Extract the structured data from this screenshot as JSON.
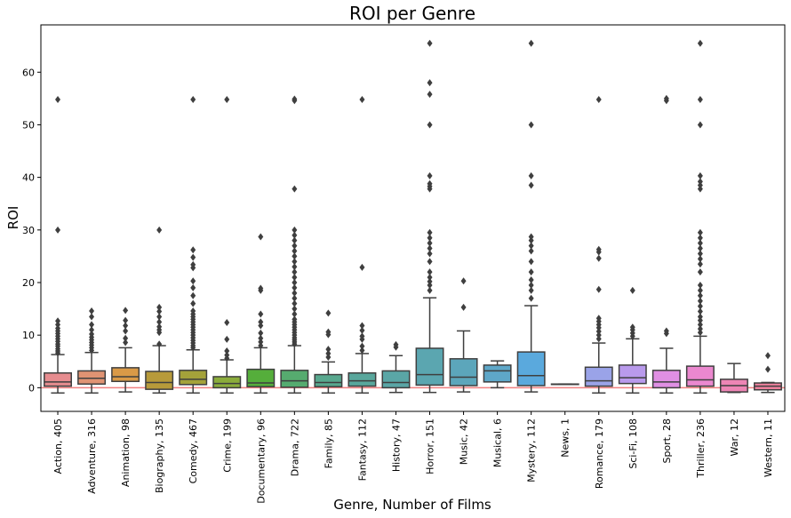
{
  "chart_data": {
    "type": "boxplot",
    "title": "ROI per Genre",
    "xlabel": "Genre, Number of Films",
    "ylabel": "ROI",
    "ylim": [
      -4.5,
      69
    ],
    "yticks": [
      0,
      10,
      20,
      30,
      40,
      50,
      60
    ],
    "grid": false,
    "reference_line": {
      "y": 0,
      "color": "#f08080"
    },
    "categories": [
      "Action, 405",
      "Adventure, 316",
      "Animation, 98",
      "Biography, 135",
      "Comedy, 467",
      "Crime, 199",
      "Documentary, 96",
      "Drama, 722",
      "Family, 85",
      "Fantasy, 112",
      "History, 47",
      "Horror, 151",
      "Music, 42",
      "Musical, 6",
      "Mystery, 112",
      "News, 1",
      "Romance, 179",
      "Sci-Fi, 108",
      "Sport, 28",
      "Thriller, 236",
      "War, 12",
      "Western, 11"
    ],
    "boxes": [
      {
        "min": -1.0,
        "q1": 0.3,
        "median": 1.1,
        "q3": 2.8,
        "max": 6.3,
        "color": "#e68c8f",
        "outliers": [
          6.6,
          7.0,
          7.4,
          7.9,
          8.3,
          8.8,
          9.3,
          9.8,
          10.3,
          10.8,
          11.3,
          12.0,
          12.7,
          30.0,
          54.8
        ]
      },
      {
        "min": -1.0,
        "q1": 0.7,
        "median": 1.8,
        "q3": 3.2,
        "max": 6.7,
        "color": "#e09373",
        "outliers": [
          7.1,
          7.6,
          8.1,
          8.6,
          9.1,
          9.6,
          10.2,
          11.0,
          12.0,
          13.5,
          14.6
        ]
      },
      {
        "min": -0.8,
        "q1": 1.2,
        "median": 2.1,
        "q3": 3.8,
        "max": 7.6,
        "color": "#d99a47",
        "outliers": [
          8.6,
          9.4,
          10.8,
          11.8,
          12.8,
          14.7
        ]
      },
      {
        "min": -1.0,
        "q1": -0.3,
        "median": 1.0,
        "q3": 3.1,
        "max": 8.0,
        "color": "#b79a3a",
        "outliers": [
          8.3,
          10.5,
          11.0,
          11.6,
          12.5,
          13.5,
          14.5,
          15.3,
          30.0
        ]
      },
      {
        "min": -1.0,
        "q1": 0.6,
        "median": 1.6,
        "q3": 3.3,
        "max": 7.2,
        "color": "#a4a23a",
        "outliers": [
          7.6,
          8.0,
          8.5,
          9.0,
          9.5,
          10.0,
          10.5,
          11.0,
          11.5,
          12.0,
          12.5,
          13.0,
          13.5,
          14.0,
          14.6,
          16.0,
          17.5,
          19.0,
          20.3,
          22.8,
          23.4,
          24.8,
          26.2,
          54.8
        ]
      },
      {
        "min": -1.0,
        "q1": 0.0,
        "median": 0.8,
        "q3": 2.1,
        "max": 5.3,
        "color": "#8bac3b",
        "outliers": [
          5.6,
          6.2,
          7.0,
          9.2,
          12.4,
          54.8
        ]
      },
      {
        "min": -1.0,
        "q1": 0.2,
        "median": 0.9,
        "q3": 3.5,
        "max": 7.6,
        "color": "#55ae3b",
        "outliers": [
          8.0,
          8.7,
          9.4,
          10.4,
          11.8,
          12.5,
          14.0,
          18.5,
          18.9,
          28.7
        ]
      },
      {
        "min": -1.0,
        "q1": 0.1,
        "median": 1.3,
        "q3": 3.3,
        "max": 8.0,
        "color": "#56ab6f",
        "outliers": [
          8.3,
          8.7,
          9.1,
          9.5,
          10.0,
          10.5,
          11.0,
          11.5,
          12.0,
          12.5,
          13.0,
          14.0,
          15.0,
          16.0,
          17.0,
          18.0,
          19.0,
          20.0,
          21.0,
          22.0,
          23.0,
          24.0,
          25.0,
          26.0,
          27.0,
          28.0,
          29.0,
          30.0,
          37.8,
          54.6,
          54.9
        ]
      },
      {
        "min": -1.0,
        "q1": 0.2,
        "median": 1.0,
        "q3": 2.5,
        "max": 4.9,
        "color": "#58a88e",
        "outliers": [
          5.8,
          6.5,
          7.3,
          10.1,
          10.6,
          14.2
        ]
      },
      {
        "min": -1.0,
        "q1": 0.3,
        "median": 1.3,
        "q3": 2.8,
        "max": 6.5,
        "color": "#59a79c",
        "outliers": [
          7.1,
          7.9,
          9.2,
          9.8,
          10.9,
          11.8,
          22.9,
          54.8
        ]
      },
      {
        "min": -0.9,
        "q1": 0.0,
        "median": 1.0,
        "q3": 3.2,
        "max": 6.1,
        "color": "#5aa6a6",
        "outliers": [
          7.7,
          8.2
        ]
      },
      {
        "min": -0.9,
        "q1": 0.5,
        "median": 2.5,
        "q3": 7.5,
        "max": 17.1,
        "color": "#5ba6b0",
        "outliers": [
          18.5,
          19.5,
          20.2,
          21.0,
          22.0,
          24.0,
          25.5,
          26.5,
          27.5,
          28.5,
          29.5,
          37.8,
          38.3,
          38.8,
          40.3,
          50.0,
          55.8,
          58.0,
          65.5
        ]
      },
      {
        "min": -0.8,
        "q1": 0.4,
        "median": 2.0,
        "q3": 5.5,
        "max": 10.8,
        "color": "#5ca6bb",
        "outliers": [
          15.3,
          20.3
        ]
      },
      {
        "min": 0.0,
        "q1": 1.1,
        "median": 3.2,
        "q3": 4.3,
        "max": 5.1,
        "color": "#5ea7c8",
        "outliers": []
      },
      {
        "min": -0.8,
        "q1": 0.4,
        "median": 2.3,
        "q3": 6.8,
        "max": 15.6,
        "color": "#5aa9dd",
        "outliers": [
          17.0,
          18.5,
          19.5,
          20.5,
          22.0,
          24.0,
          26.0,
          27.0,
          28.0,
          28.7,
          38.5,
          40.3,
          50.0,
          65.5
        ]
      },
      {
        "min": 0.7,
        "q1": 0.7,
        "median": 0.7,
        "q3": 0.7,
        "max": 0.7,
        "color": "#7aa8e3",
        "outliers": []
      },
      {
        "min": -1.0,
        "q1": 0.3,
        "median": 1.3,
        "q3": 3.9,
        "max": 8.5,
        "color": "#9aa3e8",
        "outliers": [
          9.3,
          10.0,
          10.7,
          11.4,
          12.0,
          12.6,
          13.2,
          18.7,
          24.6,
          25.8,
          26.3,
          54.8
        ]
      },
      {
        "min": -1.0,
        "q1": 0.8,
        "median": 1.9,
        "q3": 4.3,
        "max": 9.3,
        "color": "#b99aec",
        "outliers": [
          9.8,
          10.4,
          11.0,
          11.5,
          18.5
        ]
      },
      {
        "min": -1.0,
        "q1": 0.0,
        "median": 1.1,
        "q3": 3.3,
        "max": 7.5,
        "color": "#e08fe3",
        "outliers": [
          10.3,
          10.8,
          54.6,
          55.0
        ]
      },
      {
        "min": -1.0,
        "q1": 0.3,
        "median": 1.5,
        "q3": 4.1,
        "max": 9.8,
        "color": "#eb88cf",
        "outliers": [
          10.5,
          11.2,
          12.0,
          12.8,
          13.5,
          14.5,
          15.5,
          16.5,
          17.5,
          18.5,
          19.5,
          22.0,
          23.5,
          24.5,
          25.5,
          26.5,
          27.5,
          28.5,
          29.5,
          37.8,
          38.5,
          39.2,
          40.3,
          50.0,
          54.8,
          65.5
        ]
      },
      {
        "min": -0.9,
        "q1": -0.8,
        "median": 0.4,
        "q3": 1.6,
        "max": 4.6,
        "color": "#ee85b5",
        "outliers": []
      },
      {
        "min": -0.9,
        "q1": -0.4,
        "median": 0.3,
        "q3": 0.9,
        "max": 1.0,
        "color": "#ee819d",
        "outliers": [
          3.5,
          6.1
        ]
      }
    ]
  }
}
